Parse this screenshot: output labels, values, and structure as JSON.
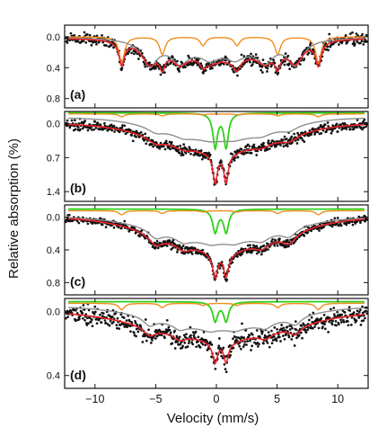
{
  "chart_data": {
    "type": "scatter",
    "xlabel": "Velocity (mm/s)",
    "ylabel": "Relative absorption (%)",
    "xlim": [
      -12.5,
      12.5
    ],
    "xticks": [
      -10,
      -5,
      0,
      5,
      10
    ],
    "colors": {
      "data": "#111111",
      "fit": "#e8242a",
      "sextet_subspectrum": "#8f8f8f",
      "sextet_subspectrum_2": "#f28c1c",
      "doublet_subspectrum": "#2fd11a"
    },
    "panels": [
      {
        "label": "(a)",
        "ylim": [
          -0.15,
          0.92
        ],
        "yticks": [
          0.0,
          0.4,
          0.8
        ],
        "yticklabels": [
          "0.0",
          "0.4",
          "0.8"
        ],
        "data_points": "scatter",
        "noise": 0.035,
        "fit": {
          "baseline": 0.02,
          "sites": [
            {
              "type": "sextet",
              "center": 0.3,
              "bhf_split": 16.2,
              "width": 0.55,
              "depth": 0.3
            },
            {
              "type": "sextet",
              "center": 0.5,
              "bhf_split": 12.0,
              "width": 1.5,
              "depth": 0.25
            },
            {
              "type": "broad",
              "center": 0.3,
              "width": 5.5,
              "depth": 0.22
            }
          ]
        },
        "components": [
          {
            "color": "sextet_subspectrum_2",
            "baseline": 0.0,
            "sites": [
              {
                "type": "sextet",
                "center": 0.3,
                "bhf_split": 16.2,
                "width": 0.55,
                "depth": 0.34
              }
            ]
          },
          {
            "color": "sextet_subspectrum",
            "baseline": 0.01,
            "sites": [
              {
                "type": "sextet",
                "center": 0.5,
                "bhf_split": 12.0,
                "width": 1.5,
                "depth": 0.3
              },
              {
                "type": "broad",
                "center": 0.3,
                "width": 5.5,
                "depth": 0.18
              }
            ]
          }
        ]
      },
      {
        "label": "(b)",
        "ylim": [
          -0.25,
          1.6
        ],
        "yticks": [
          0.0,
          0.7,
          1.4
        ],
        "yticklabels": [
          "0.0",
          "0.7",
          "1.4"
        ],
        "data_points": "scatter",
        "noise": 0.05,
        "fit": {
          "baseline": 0.0,
          "sites": [
            {
              "type": "broad",
              "center": 0.2,
              "width": 6.5,
              "depth": 0.55
            },
            {
              "type": "doublet",
              "center": 0.35,
              "split": 0.9,
              "width": 0.45,
              "depth": 0.6
            },
            {
              "type": "sextet",
              "center": 0.5,
              "bhf_split": 11.0,
              "width": 1.6,
              "depth": 0.12
            }
          ]
        },
        "components": [
          {
            "color": "doublet_subspectrum",
            "baseline": -0.22,
            "sites": [
              {
                "type": "doublet",
                "center": 0.35,
                "split": 0.9,
                "width": 0.45,
                "depth": 0.7
              }
            ]
          },
          {
            "color": "sextet_subspectrum_2",
            "baseline": -0.2,
            "sites": [
              {
                "type": "sextet",
                "center": 0.3,
                "bhf_split": 16.2,
                "width": 0.55,
                "depth": 0.06
              }
            ]
          },
          {
            "color": "sextet_subspectrum",
            "baseline": -0.12,
            "sites": [
              {
                "type": "broad",
                "center": 0.2,
                "width": 6.0,
                "depth": 0.45
              },
              {
                "type": "sextet",
                "center": 0.5,
                "bhf_split": 11.0,
                "width": 1.6,
                "depth": 0.1
              }
            ]
          }
        ]
      },
      {
        "label": "(c)",
        "ylim": [
          -0.15,
          0.95
        ],
        "yticks": [
          0.0,
          0.4,
          0.8
        ],
        "yticklabels": [
          "0.0",
          "0.4",
          "0.8"
        ],
        "data_points": "scatter",
        "noise": 0.025,
        "fit": {
          "baseline": 0.0,
          "sites": [
            {
              "type": "broad",
              "center": 0.3,
              "width": 7.0,
              "depth": 0.38
            },
            {
              "type": "doublet",
              "center": 0.35,
              "split": 0.9,
              "width": 0.5,
              "depth": 0.3
            },
            {
              "type": "sextet",
              "center": 0.5,
              "bhf_split": 11.0,
              "width": 1.4,
              "depth": 0.12
            }
          ]
        },
        "components": [
          {
            "color": "doublet_subspectrum",
            "baseline": -0.1,
            "sites": [
              {
                "type": "doublet",
                "center": 0.35,
                "split": 0.9,
                "width": 0.5,
                "depth": 0.28
              }
            ]
          },
          {
            "color": "sextet_subspectrum_2",
            "baseline": -0.08,
            "sites": [
              {
                "type": "sextet",
                "center": 0.3,
                "bhf_split": 16.2,
                "width": 0.55,
                "depth": 0.05
              }
            ]
          },
          {
            "color": "sextet_subspectrum",
            "baseline": 0.0,
            "sites": [
              {
                "type": "broad",
                "center": 0.3,
                "width": 6.5,
                "depth": 0.3
              },
              {
                "type": "sextet",
                "center": 0.5,
                "bhf_split": 11.0,
                "width": 1.4,
                "depth": 0.1
              }
            ]
          }
        ]
      },
      {
        "label": "(d)",
        "ylim": [
          -0.08,
          0.48
        ],
        "yticks": [
          0.0,
          0.4
        ],
        "yticklabels": [
          "0.0",
          "0.4"
        ],
        "data_points": "scatter",
        "noise": 0.028,
        "fit": {
          "baseline": 0.0,
          "sites": [
            {
              "type": "broad",
              "center": 0.3,
              "width": 8.0,
              "depth": 0.17
            },
            {
              "type": "doublet",
              "center": 0.35,
              "split": 0.9,
              "width": 0.5,
              "depth": 0.13
            },
            {
              "type": "sextet",
              "center": 0.5,
              "bhf_split": 12.0,
              "width": 1.2,
              "depth": 0.05
            }
          ]
        },
        "components": [
          {
            "color": "doublet_subspectrum",
            "baseline": -0.06,
            "sites": [
              {
                "type": "doublet",
                "center": 0.35,
                "split": 0.9,
                "width": 0.5,
                "depth": 0.12
              }
            ]
          },
          {
            "color": "sextet_subspectrum_2",
            "baseline": -0.05,
            "sites": [
              {
                "type": "sextet",
                "center": 0.3,
                "bhf_split": 16.2,
                "width": 0.55,
                "depth": 0.04
              }
            ]
          },
          {
            "color": "sextet_subspectrum",
            "baseline": -0.03,
            "sites": [
              {
                "type": "broad",
                "center": 0.3,
                "width": 7.0,
                "depth": 0.14
              },
              {
                "type": "sextet",
                "center": 0.5,
                "bhf_split": 12.0,
                "width": 1.2,
                "depth": 0.05
              }
            ]
          }
        ]
      }
    ]
  }
}
